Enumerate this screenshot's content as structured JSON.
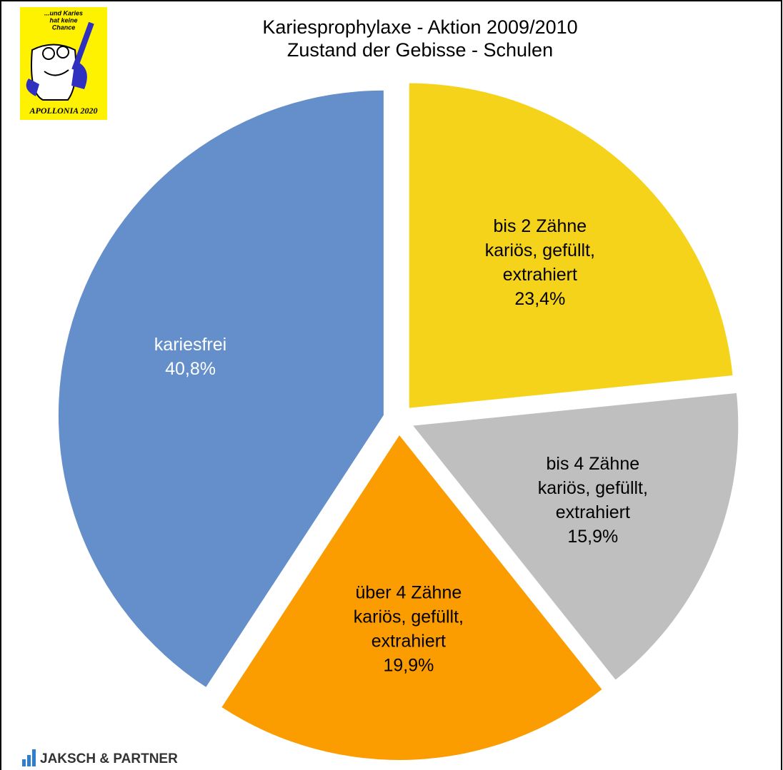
{
  "chart_data": {
    "type": "pie",
    "title": [
      "Kariesprophylaxe - Aktion 2009/2010",
      "Zustand der Gebisse - Schulen"
    ],
    "categories": [
      [
        "kariesfrei"
      ],
      [
        "bis 2 Zähne",
        "kariös, gefüllt,",
        "extrahiert"
      ],
      [
        "bis 4 Zähne",
        "kariös, gefüllt,",
        "extrahiert"
      ],
      [
        "über 4 Zähne",
        "kariös, gefüllt,",
        "extrahiert"
      ]
    ],
    "values": [
      40.8,
      23.4,
      15.9,
      19.9
    ],
    "value_labels": [
      "40,8%",
      "23,4%",
      "15,9%",
      "19,9%"
    ],
    "colors": [
      "#648fcb",
      "#f5d31b",
      "#bfbfbf",
      "#fb9c00"
    ],
    "label_colors": [
      "#ffffff",
      "#000000",
      "#000000",
      "#000000"
    ]
  },
  "logos": {
    "apollonia_slogan": [
      "...und Karies",
      "hat keine",
      "Chance"
    ],
    "apollonia_name": "APOLLONIA 2020",
    "company": "JAKSCH & PARTNER"
  }
}
